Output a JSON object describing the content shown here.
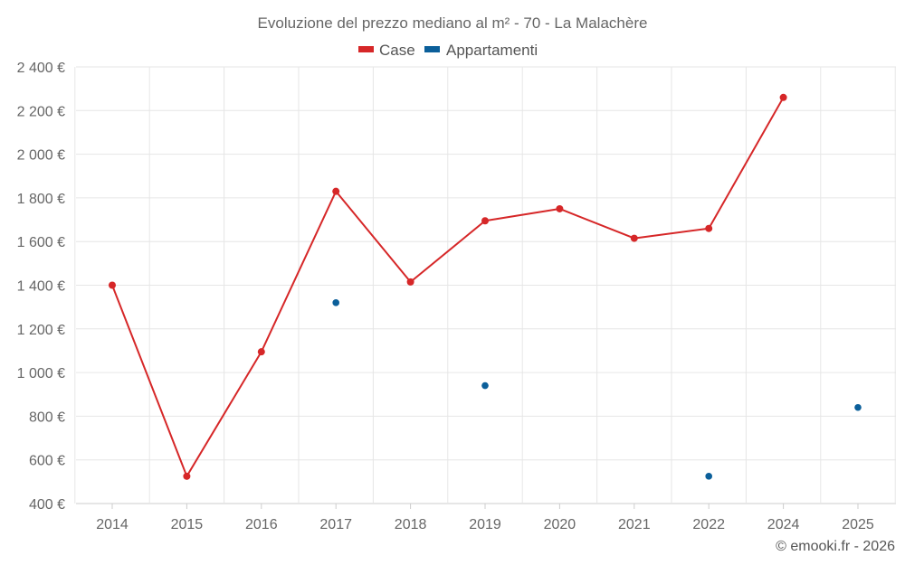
{
  "chart_data": {
    "type": "line",
    "title": "Evoluzione del prezzo mediano al m² - 70 - La Malachère",
    "categories": [
      "2014",
      "2015",
      "2016",
      "2017",
      "2018",
      "2019",
      "2020",
      "2021",
      "2022",
      "2024",
      "2025"
    ],
    "ylim": [
      400,
      2400
    ],
    "y_ticks": [
      400,
      600,
      800,
      1000,
      1200,
      1400,
      1600,
      1800,
      2000,
      2200,
      2400
    ],
    "y_tick_labels": [
      "400 €",
      "600 €",
      "800 €",
      "1 000 €",
      "1 200 €",
      "1 400 €",
      "1 600 €",
      "1 800 €",
      "2 000 €",
      "2 200 €",
      "2 400 €"
    ],
    "grid": true,
    "legend_position": "top-center",
    "series": [
      {
        "name": "Case",
        "color": "#d62728",
        "line": true,
        "values": [
          1400,
          525,
          1095,
          1830,
          1415,
          1695,
          1750,
          1615,
          1660,
          2260,
          null
        ]
      },
      {
        "name": "Appartamenti",
        "color": "#0b5f9a",
        "line": false,
        "values": [
          null,
          null,
          null,
          1320,
          null,
          940,
          null,
          null,
          525,
          null,
          840
        ]
      }
    ]
  },
  "credit": "© emooki.fr - 2026"
}
